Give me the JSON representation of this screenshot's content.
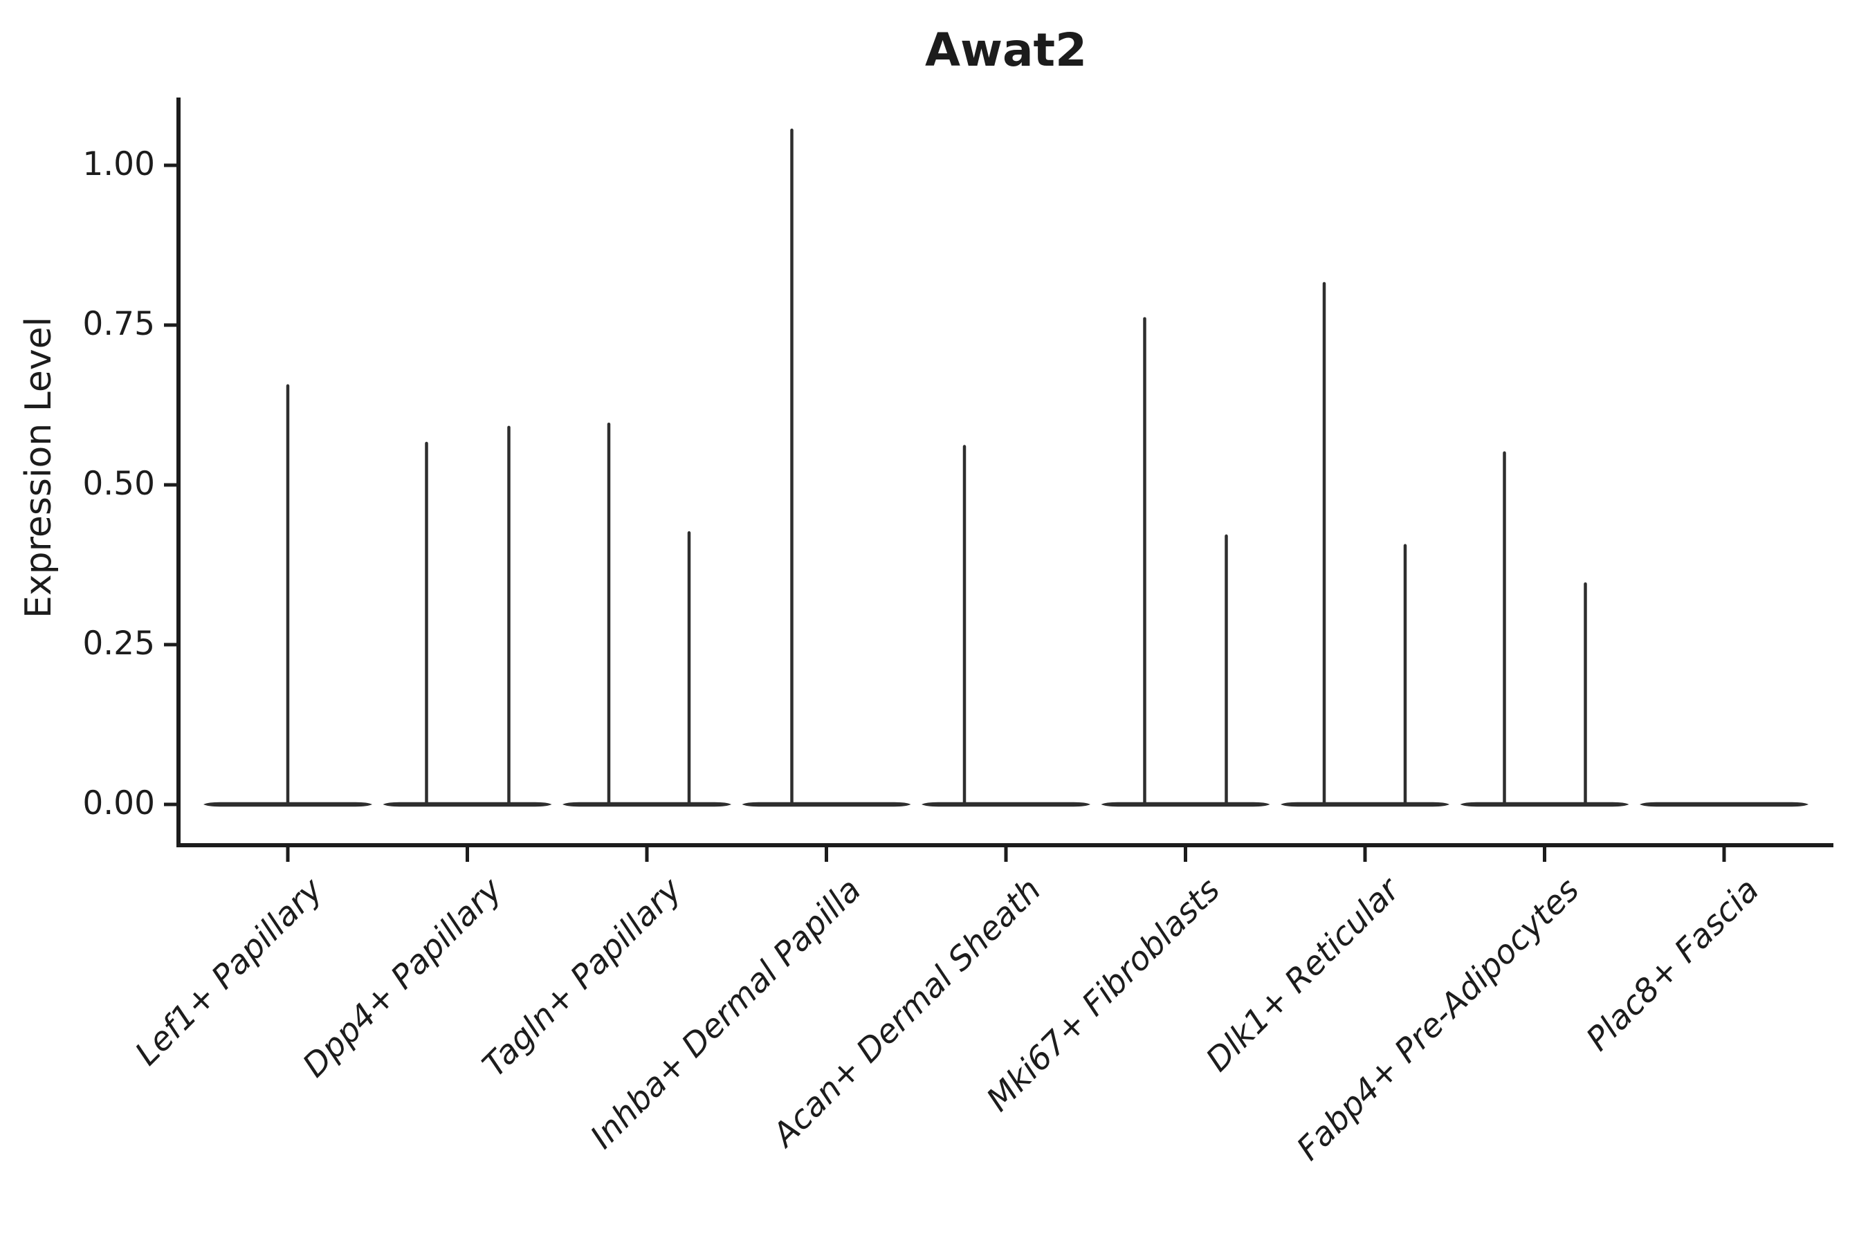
{
  "chart_data": {
    "type": "violin",
    "title": "Awat2",
    "ylabel": "Expression Level",
    "xlabel": "",
    "legend_position": "none",
    "grid": false,
    "ylim": [
      -0.06,
      1.11
    ],
    "ytick_labels": [
      "0.00",
      "0.25",
      "0.50",
      "0.75",
      "1.00"
    ],
    "ytick_values": [
      0,
      0.25,
      0.5,
      0.75,
      1.0
    ],
    "x_tick_rotation_deg": 45,
    "x_tick_style": "italic",
    "categories": [
      "Lef1+ Papillary",
      "Dpp4+ Papillary",
      "Tagln+ Papillary",
      "Inhba+ Dermal Papilla",
      "Acan+ Dermal Sheath",
      "Mki67+ Fibroblasts",
      "Dlk1+ Reticular",
      "Fabp4+ Pre-Adipocytes",
      "Plac8+ Fascia"
    ],
    "description": "Violin plot of Awat2 expression per fibroblast cluster; every violin is collapsed to a flat line at 0 expression with thin density spikes reaching the maximum expressing-cell value.",
    "violins": [
      {
        "category": "Lef1+ Papillary",
        "baseline_value": 0,
        "spikes": [
          {
            "dx": 0,
            "max": 0.655
          }
        ]
      },
      {
        "category": "Dpp4+ Papillary",
        "baseline_value": 0,
        "spikes": [
          {
            "dx": -59,
            "max": 0.565
          },
          {
            "dx": 60,
            "max": 0.59
          }
        ]
      },
      {
        "category": "Tagln+ Papillary",
        "baseline_value": 0,
        "spikes": [
          {
            "dx": -55,
            "max": 0.595
          },
          {
            "dx": 61,
            "max": 0.425
          }
        ]
      },
      {
        "category": "Inhba+ Dermal Papilla",
        "baseline_value": 0,
        "spikes": [
          {
            "dx": -50,
            "max": 1.055
          }
        ]
      },
      {
        "category": "Acan+ Dermal Sheath",
        "baseline_value": 0,
        "spikes": [
          {
            "dx": -60,
            "max": 0.56
          }
        ]
      },
      {
        "category": "Mki67+ Fibroblasts",
        "baseline_value": 0,
        "spikes": [
          {
            "dx": -59,
            "max": 0.76
          },
          {
            "dx": 59,
            "max": 0.42
          }
        ]
      },
      {
        "category": "Dlk1+ Reticular",
        "baseline_value": 0,
        "spikes": [
          {
            "dx": -59,
            "max": 0.815
          },
          {
            "dx": 58,
            "max": 0.405
          }
        ]
      },
      {
        "category": "Fabp4+ Pre-Adipocytes",
        "baseline_value": 0,
        "spikes": [
          {
            "dx": -58,
            "max": 0.55
          },
          {
            "dx": 59,
            "max": 0.345
          }
        ]
      },
      {
        "category": "Plac8+ Fascia",
        "baseline_value": 0,
        "spikes": []
      }
    ],
    "colors": {
      "ink": "#1c1c1c",
      "violin": "#2e2e2e",
      "background": "#ffffff"
    }
  }
}
